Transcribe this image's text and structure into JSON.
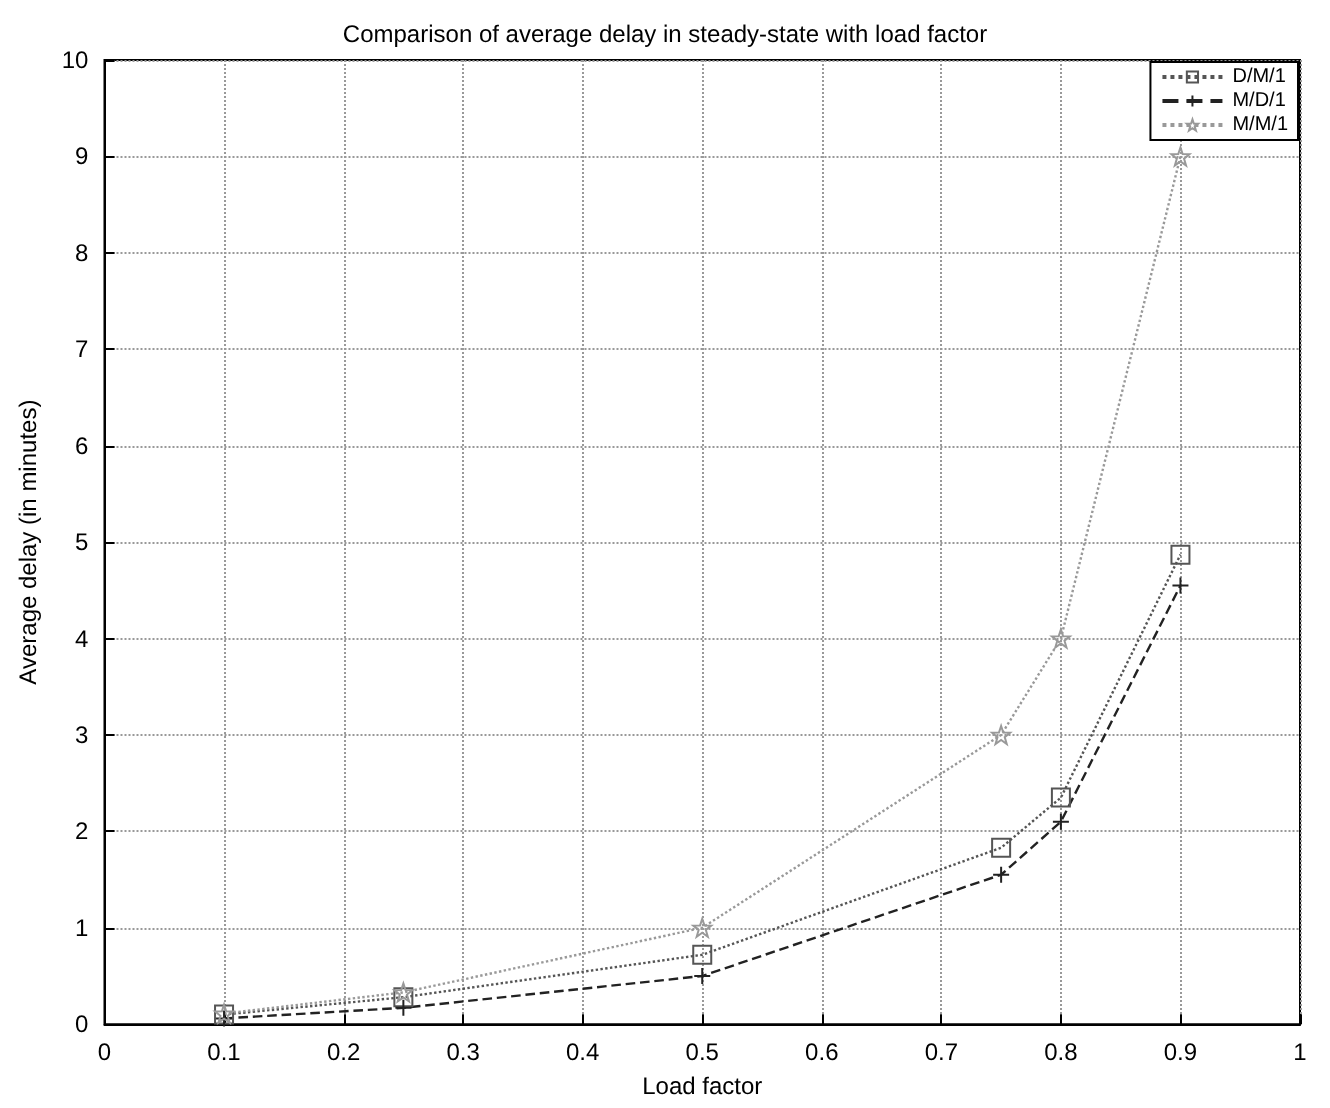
{
  "chart_data": {
    "type": "line",
    "title": "Comparison of average delay in steady-state with load factor",
    "xlabel": "Load factor",
    "ylabel": "Average delay (in minutes)",
    "x": [
      0.1,
      0.25,
      0.5,
      0.75,
      0.8,
      0.9
    ],
    "series": [
      {
        "name": "D/M/1",
        "color": "#555555",
        "values": [
          0.1,
          0.28,
          0.72,
          1.83,
          2.35,
          4.87
        ],
        "marker": "square",
        "line_style": "dotted"
      },
      {
        "name": "M/D/1",
        "color": "#222222",
        "values": [
          0.06,
          0.17,
          0.5,
          1.55,
          2.1,
          4.55
        ],
        "marker": "cross",
        "line_style": "dashed"
      },
      {
        "name": "M/M/1",
        "color": "#999999",
        "values": [
          0.11,
          0.33,
          1.0,
          3.0,
          4.0,
          9.0
        ],
        "marker": "star",
        "line_style": "dotted"
      }
    ],
    "xlim": [
      0,
      1
    ],
    "xticks": [
      0,
      0.1,
      0.2,
      0.3,
      0.4,
      0.5,
      0.6,
      0.7,
      0.8,
      0.9,
      1
    ],
    "ylim": [
      0,
      10
    ],
    "yticks": [
      0,
      1,
      2,
      3,
      4,
      5,
      6,
      7,
      8,
      9,
      10
    ],
    "grid": true,
    "legend": "top right"
  }
}
